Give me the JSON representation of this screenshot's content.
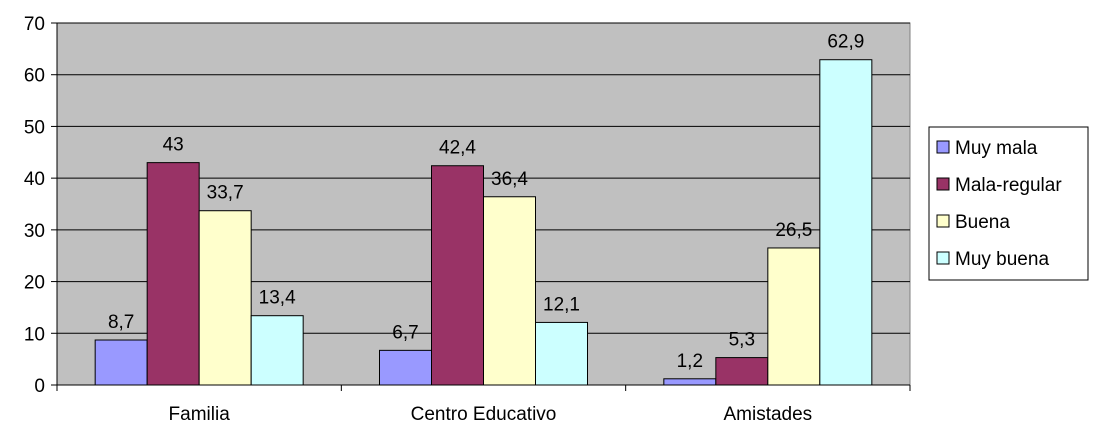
{
  "chart_data": {
    "type": "bar",
    "categories": [
      "Familia",
      "Centro Educativo",
      "Amistades"
    ],
    "series": [
      {
        "name": "Muy mala",
        "values": [
          8.7,
          6.7,
          1.2
        ],
        "labels": [
          "8,7",
          "6,7",
          "1,2"
        ],
        "color": "#9999ff"
      },
      {
        "name": "Mala-regular",
        "values": [
          43,
          42.4,
          5.3
        ],
        "labels": [
          "43",
          "42,4",
          "5,3"
        ],
        "color": "#993366"
      },
      {
        "name": "Buena",
        "values": [
          33.7,
          36.4,
          26.5
        ],
        "labels": [
          "33,7",
          "36,4",
          "26,5"
        ],
        "color": "#ffffcc"
      },
      {
        "name": "Muy buena",
        "values": [
          13.4,
          12.1,
          62.9
        ],
        "labels": [
          "13,4",
          "12,1",
          "62,9"
        ],
        "color": "#ccffff"
      }
    ],
    "yticks": [
      "0",
      "10",
      "20",
      "30",
      "40",
      "50",
      "60",
      "70"
    ],
    "ylim": [
      0,
      70
    ],
    "grid": true,
    "plot_background": "#c0c0c0",
    "legend_position": "right",
    "title": "",
    "xlabel": "",
    "ylabel": ""
  }
}
